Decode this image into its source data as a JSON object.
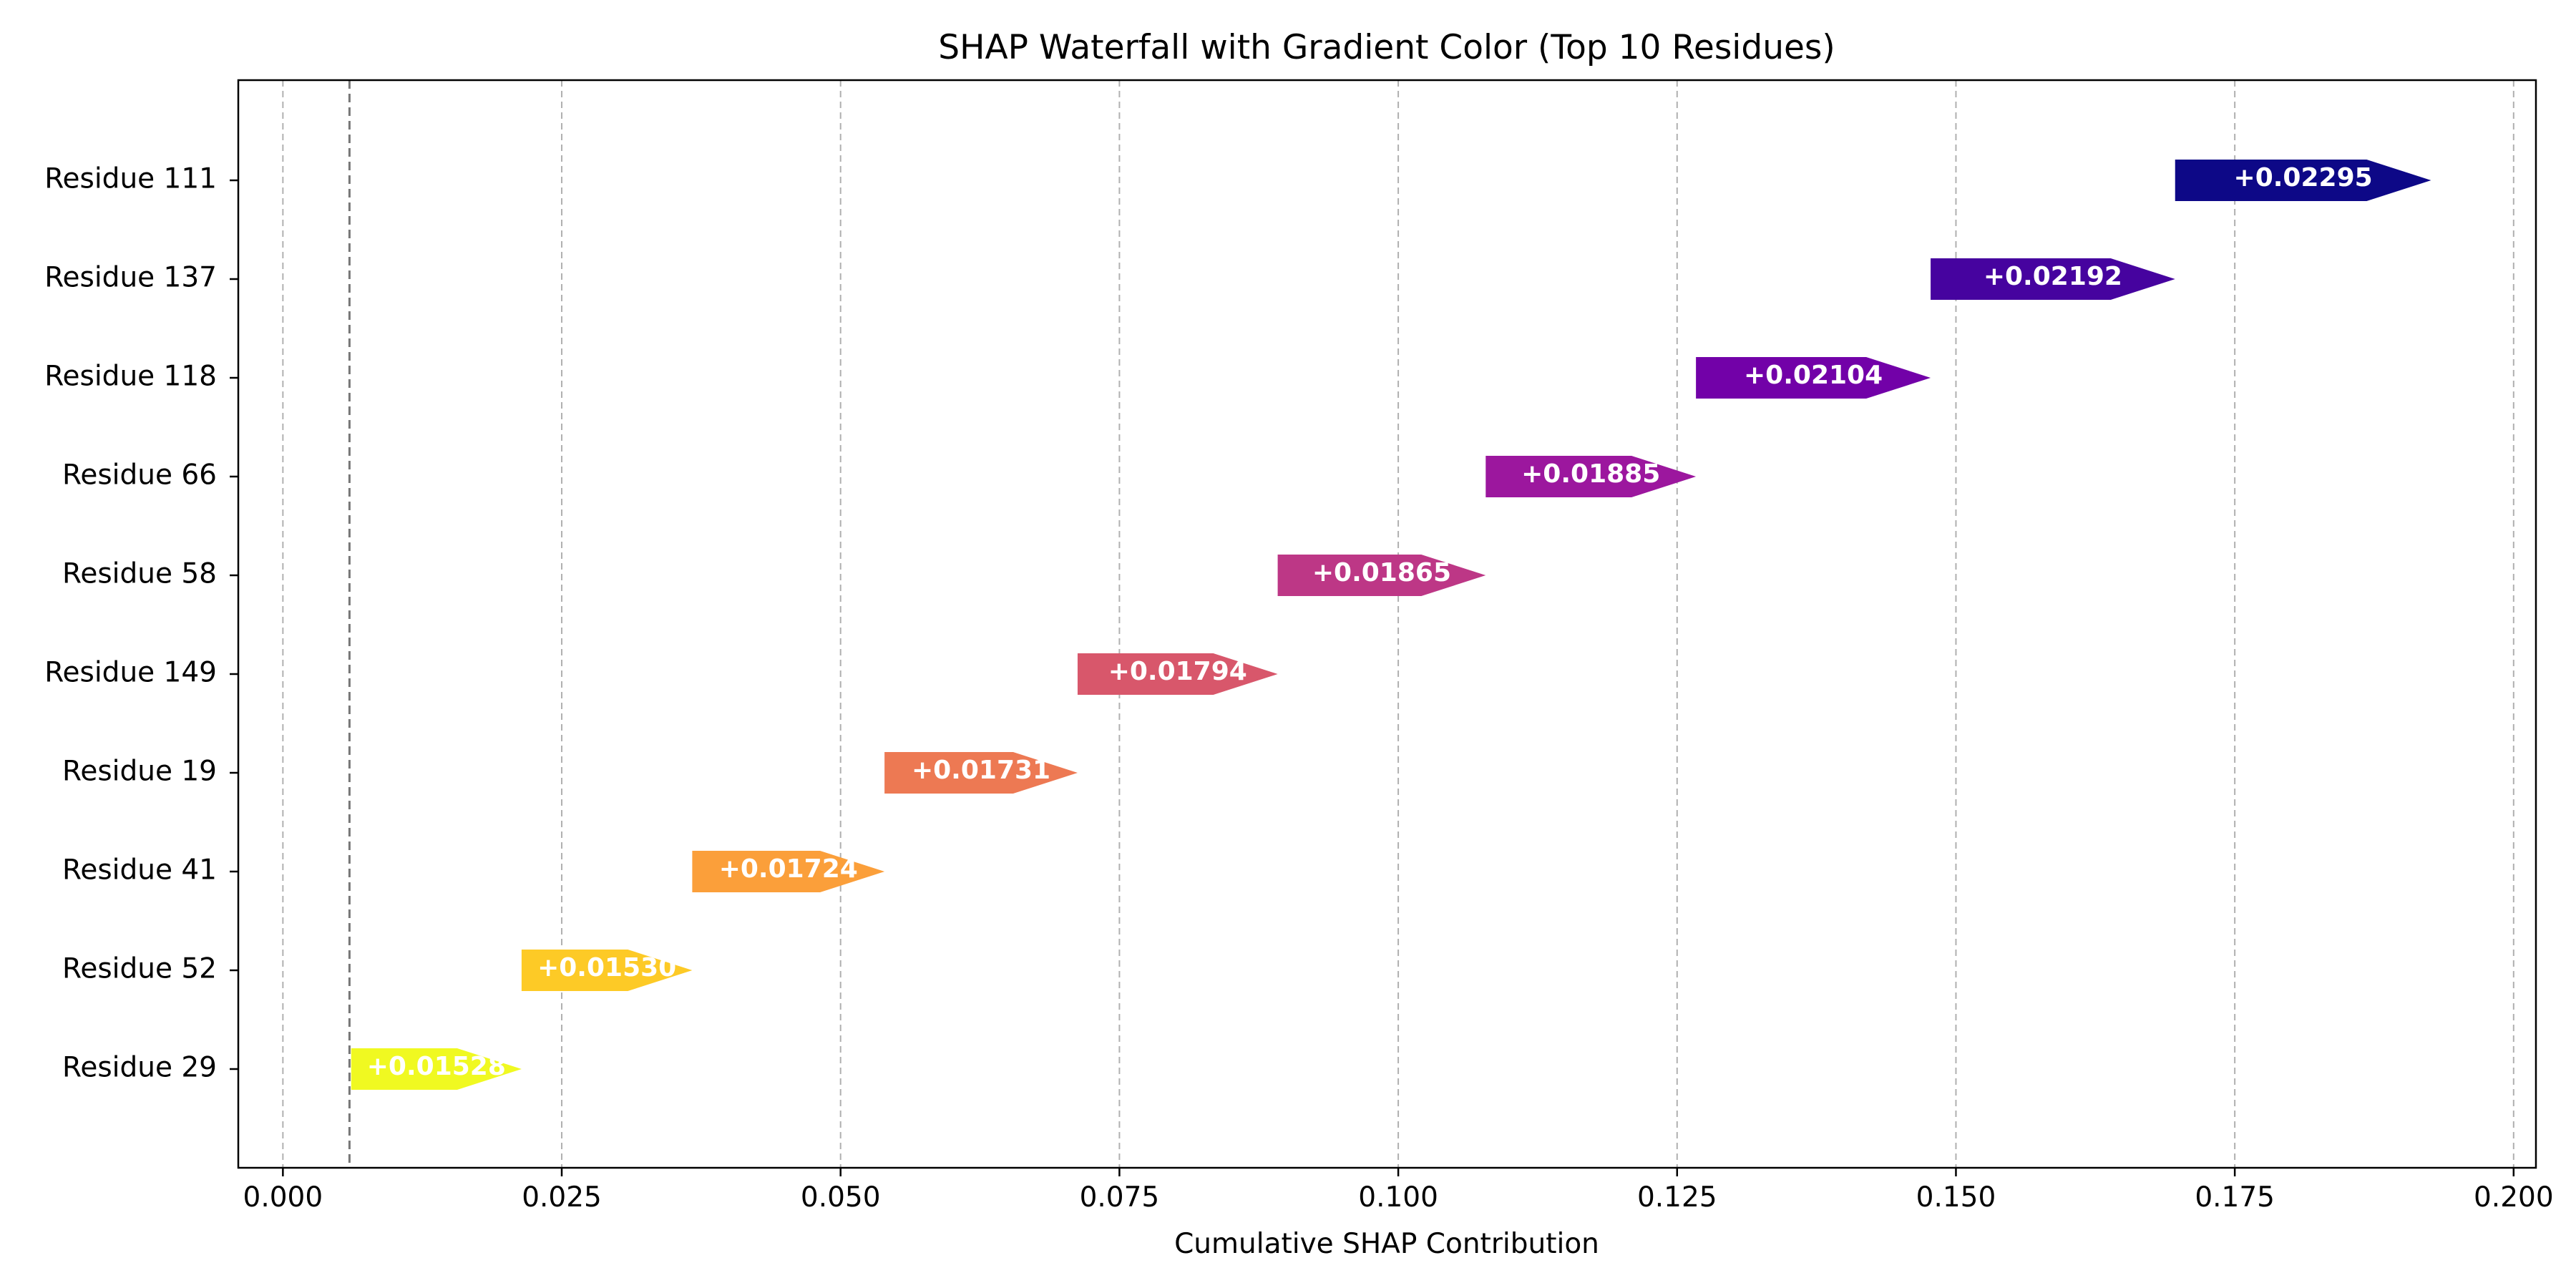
{
  "chart_data": {
    "type": "bar",
    "orientation": "horizontal",
    "style": "waterfall",
    "title": "SHAP Waterfall with Gradient Color (Top 10 Residues)",
    "xlabel": "Cumulative SHAP Contribution",
    "ylabel": "",
    "xlim": [
      -0.004,
      0.202
    ],
    "x_ticks": [
      "0.000",
      "0.025",
      "0.050",
      "0.075",
      "0.100",
      "0.125",
      "0.150",
      "0.175",
      "0.200"
    ],
    "grid": "vertical dashed",
    "baseline": 0.00597,
    "colormap": "plasma",
    "bars": [
      {
        "label": "Residue 111",
        "start": 0.16965,
        "value": 0.02295,
        "text": "+0.02295",
        "color": "#0d0887"
      },
      {
        "label": "Residue 137",
        "start": 0.14773,
        "value": 0.02192,
        "text": "+0.02192",
        "color": "#46039f"
      },
      {
        "label": "Residue 118",
        "start": 0.12669,
        "value": 0.02104,
        "text": "+0.02104",
        "color": "#7201a8"
      },
      {
        "label": "Residue 66",
        "start": 0.10784,
        "value": 0.01885,
        "text": "+0.01885",
        "color": "#9c179e"
      },
      {
        "label": "Residue 58",
        "start": 0.08919,
        "value": 0.01865,
        "text": "+0.01865",
        "color": "#bd3786"
      },
      {
        "label": "Residue 149",
        "start": 0.07125,
        "value": 0.01794,
        "text": "+0.01794",
        "color": "#d8576b"
      },
      {
        "label": "Residue 19",
        "start": 0.05394,
        "value": 0.01731,
        "text": "+0.01731",
        "color": "#ed7953"
      },
      {
        "label": "Residue 41",
        "start": 0.0367,
        "value": 0.01724,
        "text": "+0.01724",
        "color": "#fb9f3a"
      },
      {
        "label": "Residue 52",
        "start": 0.0214,
        "value": 0.0153,
        "text": "+0.01530",
        "color": "#fdca26"
      },
      {
        "label": "Residue 29",
        "start": 0.00612,
        "value": 0.01528,
        "text": "+0.01528",
        "color": "#f0f921"
      }
    ]
  }
}
